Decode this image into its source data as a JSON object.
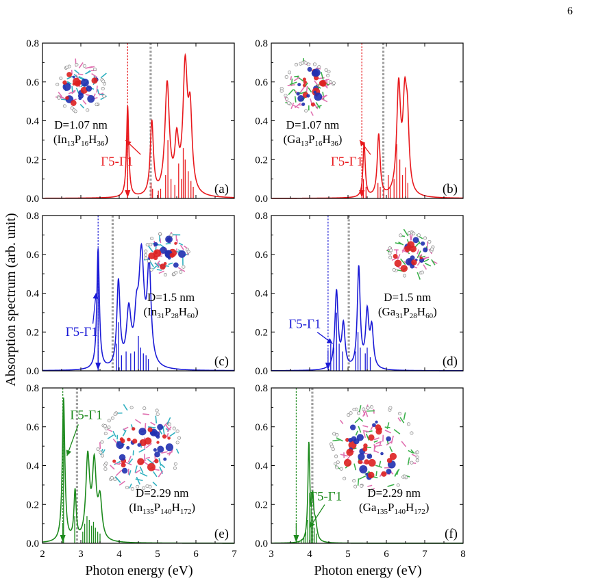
{
  "page_number": "6",
  "ylabel": "Absorption spectrum (arb. unit)",
  "xlabel": "Photon energy (eV)",
  "transition_label": "Γ5-Γ1",
  "chart_data": [
    {
      "id": "a",
      "type": "line",
      "panel_label": "(a)",
      "color": "#e8191d",
      "xlim": [
        2,
        7
      ],
      "ylim": [
        0,
        0.8
      ],
      "xticks": [
        2,
        3,
        4,
        5,
        6,
        7
      ],
      "yticks": [
        0,
        0.2,
        0.4,
        0.6,
        0.8
      ],
      "ytick_labels": [
        "0.0",
        "0.2",
        "0.4",
        "0.6",
        "0.8"
      ],
      "size_label": "D=1.07 nm",
      "formula": [
        [
          "(In",
          "n"
        ],
        [
          "13",
          "s"
        ],
        [
          "P",
          "n"
        ],
        [
          "16",
          "s"
        ],
        [
          "H",
          "n"
        ],
        [
          "36",
          "s"
        ],
        [
          ")",
          "n"
        ]
      ],
      "gap_line": 4.22,
      "gray_line": 4.82,
      "transition_pos": [
        3.52,
        0.17
      ],
      "peaks": [
        [
          4.22,
          0.47,
          0.035
        ],
        [
          4.85,
          0.38,
          0.05
        ],
        [
          5.25,
          0.57,
          0.07
        ],
        [
          5.5,
          0.25,
          0.06
        ],
        [
          5.72,
          0.64,
          0.07
        ],
        [
          5.85,
          0.38,
          0.06
        ]
      ],
      "sticks": [
        [
          4.22,
          0.47
        ],
        [
          4.83,
          0.08
        ],
        [
          4.87,
          0.05
        ],
        [
          5.02,
          0.04
        ],
        [
          5.08,
          0.05
        ],
        [
          5.21,
          0.12
        ],
        [
          5.27,
          0.3
        ],
        [
          5.35,
          0.1
        ],
        [
          5.45,
          0.07
        ],
        [
          5.55,
          0.18
        ],
        [
          5.62,
          0.1
        ],
        [
          5.67,
          0.26
        ],
        [
          5.72,
          0.2
        ],
        [
          5.8,
          0.14
        ],
        [
          5.87,
          0.09
        ],
        [
          5.93,
          0.06
        ]
      ],
      "inset": {
        "cx": 3.0,
        "cy": 0.57,
        "r": 36,
        "metal": "#30b0c0"
      }
    },
    {
      "id": "b",
      "type": "line",
      "panel_label": "(b)",
      "color": "#e8191d",
      "xlim": [
        3,
        8
      ],
      "ylim": [
        0,
        0.8
      ],
      "xticks": [
        3,
        4,
        5,
        6,
        7,
        8
      ],
      "yticks": [
        0,
        0.2,
        0.4,
        0.6,
        0.8
      ],
      "ytick_labels": [
        "0.0",
        "0.2",
        "0.4",
        "0.6",
        "0.8"
      ],
      "size_label": "D=1.07 nm",
      "formula": [
        [
          "(Ga",
          "n"
        ],
        [
          "13",
          "s"
        ],
        [
          "P",
          "n"
        ],
        [
          "16",
          "s"
        ],
        [
          "H",
          "n"
        ],
        [
          "36",
          "s"
        ],
        [
          ")",
          "n"
        ]
      ],
      "gap_line": 5.36,
      "gray_line": 5.92,
      "transition_pos": [
        4.55,
        0.17
      ],
      "peaks": [
        [
          5.42,
          0.28,
          0.035
        ],
        [
          5.8,
          0.32,
          0.045
        ],
        [
          6.32,
          0.55,
          0.06
        ],
        [
          6.48,
          0.45,
          0.06
        ],
        [
          6.55,
          0.3,
          0.05
        ]
      ],
      "sticks": [
        [
          5.4,
          0.1
        ],
        [
          5.47,
          0.06
        ],
        [
          5.78,
          0.08
        ],
        [
          5.84,
          0.06
        ],
        [
          5.93,
          0.05
        ],
        [
          6.05,
          0.12
        ],
        [
          6.1,
          0.06
        ],
        [
          6.2,
          0.1
        ],
        [
          6.27,
          0.28
        ],
        [
          6.35,
          0.2
        ],
        [
          6.42,
          0.12
        ],
        [
          6.5,
          0.16
        ],
        [
          6.56,
          0.08
        ]
      ],
      "inset": {
        "cx": 3.95,
        "cy": 0.57,
        "r": 38,
        "metal": "#3ab04a"
      }
    },
    {
      "id": "c",
      "type": "line",
      "panel_label": "(c)",
      "color": "#1a1ad6",
      "xlim": [
        2,
        7
      ],
      "ylim": [
        0,
        0.8
      ],
      "xticks": [
        2,
        3,
        4,
        5,
        6,
        7
      ],
      "yticks": [
        0,
        0.2,
        0.4,
        0.6,
        0.8
      ],
      "ytick_labels": [
        "0.0",
        "0.2",
        "0.4",
        "0.6",
        "0.8"
      ],
      "size_label": "D=1.5 nm",
      "formula": [
        [
          "(In",
          "n"
        ],
        [
          "31",
          "s"
        ],
        [
          "P",
          "n"
        ],
        [
          "28",
          "s"
        ],
        [
          "H",
          "n"
        ],
        [
          "60",
          "s"
        ],
        [
          ")",
          "n"
        ]
      ],
      "gap_line": 3.45,
      "gray_line": 3.83,
      "transition_pos": [
        2.6,
        0.18
      ],
      "peaks": [
        [
          3.45,
          0.62,
          0.04
        ],
        [
          3.98,
          0.44,
          0.05
        ],
        [
          4.25,
          0.28,
          0.07
        ],
        [
          4.58,
          0.56,
          0.08
        ],
        [
          4.78,
          0.5,
          0.06
        ],
        [
          4.45,
          0.2,
          0.06
        ]
      ],
      "sticks": [
        [
          3.45,
          0.6
        ],
        [
          3.93,
          0.14
        ],
        [
          3.98,
          0.25
        ],
        [
          4.06,
          0.08
        ],
        [
          4.18,
          0.1
        ],
        [
          4.3,
          0.09
        ],
        [
          4.4,
          0.1
        ],
        [
          4.5,
          0.18
        ],
        [
          4.56,
          0.12
        ],
        [
          4.63,
          0.09
        ],
        [
          4.7,
          0.08
        ],
        [
          4.76,
          0.06
        ]
      ],
      "inset": {
        "cx": 5.25,
        "cy": 0.6,
        "r": 32,
        "metal": "#30b0c0"
      }
    },
    {
      "id": "d",
      "type": "line",
      "panel_label": "(d)",
      "color": "#1a1ad6",
      "xlim": [
        3,
        8
      ],
      "ylim": [
        0,
        0.8
      ],
      "xticks": [
        3,
        4,
        5,
        6,
        7,
        8
      ],
      "yticks": [
        0,
        0.2,
        0.4,
        0.6,
        0.8
      ],
      "ytick_labels": [
        "0.0",
        "0.2",
        "0.4",
        "0.6",
        "0.8"
      ],
      "size_label": "D=1.5 nm",
      "formula": [
        [
          "(Ga",
          "n"
        ],
        [
          "31",
          "s"
        ],
        [
          "P",
          "n"
        ],
        [
          "28",
          "s"
        ],
        [
          "H",
          "n"
        ],
        [
          "60",
          "s"
        ],
        [
          ")",
          "n"
        ]
      ],
      "gap_line": 4.48,
      "gray_line": 5.02,
      "transition_pos": [
        3.45,
        0.22
      ],
      "peaks": [
        [
          4.7,
          0.4,
          0.05
        ],
        [
          4.88,
          0.22,
          0.05
        ],
        [
          5.28,
          0.52,
          0.045
        ],
        [
          5.5,
          0.28,
          0.05
        ],
        [
          5.62,
          0.2,
          0.05
        ]
      ],
      "sticks": [
        [
          4.55,
          0.14
        ],
        [
          4.63,
          0.12
        ],
        [
          4.7,
          0.3
        ],
        [
          4.77,
          0.14
        ],
        [
          4.86,
          0.1
        ],
        [
          5.2,
          0.1
        ],
        [
          5.26,
          0.2
        ],
        [
          5.32,
          0.12
        ],
        [
          5.45,
          0.09
        ],
        [
          5.5,
          0.12
        ],
        [
          5.58,
          0.07
        ]
      ],
      "inset": {
        "cx": 6.65,
        "cy": 0.6,
        "r": 34,
        "metal": "#3ab04a"
      }
    },
    {
      "id": "e",
      "type": "line",
      "panel_label": "(e)",
      "color": "#1d8a1d",
      "xlim": [
        2,
        7
      ],
      "ylim": [
        0,
        0.8
      ],
      "xticks": [
        2,
        3,
        4,
        5,
        6,
        7
      ],
      "yticks": [
        0,
        0.2,
        0.4,
        0.6,
        0.8
      ],
      "ytick_labels": [
        "0.0",
        "0.2",
        "0.4",
        "0.6",
        "0.8"
      ],
      "size_label": "D=2.29 nm",
      "formula": [
        [
          "(In",
          "n"
        ],
        [
          "135",
          "s"
        ],
        [
          "P",
          "n"
        ],
        [
          "140",
          "s"
        ],
        [
          "H",
          "n"
        ],
        [
          "172",
          "s"
        ],
        [
          ")",
          "n"
        ]
      ],
      "gap_line": 2.53,
      "gray_line": 2.9,
      "transition_pos": [
        2.72,
        0.64
      ],
      "peaks": [
        [
          2.55,
          0.74,
          0.04
        ],
        [
          2.85,
          0.25,
          0.035
        ],
        [
          3.18,
          0.42,
          0.06
        ],
        [
          3.35,
          0.38,
          0.06
        ],
        [
          3.5,
          0.2,
          0.06
        ]
      ],
      "sticks": [
        [
          2.55,
          0.7
        ],
        [
          2.84,
          0.14
        ],
        [
          3.05,
          0.06
        ],
        [
          3.1,
          0.1
        ],
        [
          3.16,
          0.14
        ],
        [
          3.22,
          0.12
        ],
        [
          3.28,
          0.09
        ],
        [
          3.33,
          0.11
        ],
        [
          3.38,
          0.08
        ],
        [
          3.44,
          0.06
        ],
        [
          3.5,
          0.05
        ]
      ],
      "inset": {
        "cx": 4.55,
        "cy": 0.49,
        "r": 62,
        "metal": "#30b0c0"
      }
    },
    {
      "id": "f",
      "type": "line",
      "panel_label": "(f)",
      "color": "#1d8a1d",
      "xlim": [
        3,
        8
      ],
      "ylim": [
        0,
        0.8
      ],
      "xticks": [
        3,
        4,
        5,
        6,
        7,
        8
      ],
      "yticks": [
        0,
        0.2,
        0.4,
        0.6,
        0.8
      ],
      "ytick_labels": [
        "0.0",
        "0.2",
        "0.4",
        "0.6",
        "0.8"
      ],
      "size_label": "D=2.29 nm",
      "formula": [
        [
          "(Ga",
          "n"
        ],
        [
          "135",
          "s"
        ],
        [
          "P",
          "n"
        ],
        [
          "140",
          "s"
        ],
        [
          "H",
          "n"
        ],
        [
          "172",
          "s"
        ],
        [
          ")",
          "n"
        ]
      ],
      "gap_line": 3.65,
      "gray_line": 4.07,
      "transition_pos": [
        4.0,
        0.22
      ],
      "peaks": [
        [
          3.98,
          0.5,
          0.03
        ],
        [
          4.08,
          0.2,
          0.03
        ],
        [
          4.15,
          0.09,
          0.05
        ]
      ],
      "sticks": [
        [
          3.72,
          0.01
        ],
        [
          3.78,
          0.02
        ],
        [
          3.85,
          0.03
        ],
        [
          3.9,
          0.06
        ],
        [
          3.95,
          0.12
        ],
        [
          4.0,
          0.26
        ],
        [
          4.04,
          0.18
        ],
        [
          4.08,
          0.14
        ],
        [
          4.12,
          0.08
        ],
        [
          4.18,
          0.05
        ]
      ],
      "inset": {
        "cx": 5.72,
        "cy": 0.49,
        "r": 64,
        "metal": "#3ab04a"
      }
    }
  ]
}
